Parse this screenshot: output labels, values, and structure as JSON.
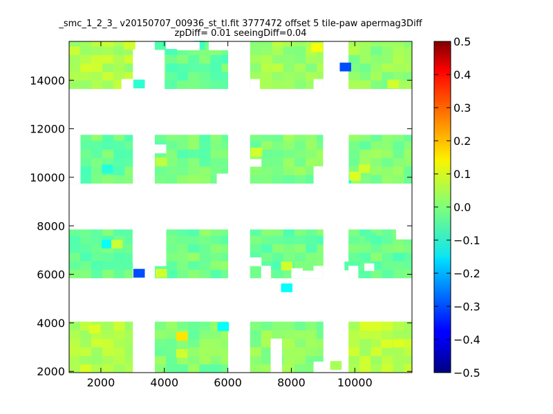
{
  "chart_data": {
    "type": "heatmap",
    "title": "_smc_1_2_3_ v20150707_00936_st_tl.fit 3777472 offset 5 tile-paw apermag3Diff",
    "subtitle": "zpDiff= 0.01 seeingDiff=0.04",
    "xlabel": "",
    "ylabel": "",
    "xlim": [
      1000,
      11800
    ],
    "ylim": [
      1950,
      15600
    ],
    "x_ticks": [
      2000,
      4000,
      6000,
      8000,
      10000
    ],
    "y_ticks": [
      2000,
      4000,
      6000,
      8000,
      10000,
      12000,
      14000
    ],
    "colorbar": {
      "colormap": "jet",
      "vmin": -0.5,
      "vmax": 0.5,
      "ticks": [
        "0.5",
        "0.4",
        "0.3",
        "0.2",
        "0.1",
        "0.0",
        "−0.1",
        "−0.2",
        "−0.3",
        "−0.4",
        "−0.5"
      ],
      "tick_values": [
        0.5,
        0.4,
        0.3,
        0.2,
        0.1,
        0.0,
        -0.1,
        -0.2,
        -0.3,
        -0.4,
        -0.5
      ]
    },
    "grid": false,
    "cell_size": [
      350,
      350
    ],
    "background_value": 0.0,
    "blocks": [
      {
        "x": [
          1000,
          3000
        ],
        "y": [
          13650,
          15600
        ],
        "value": 0.05
      },
      {
        "x": [
          3700,
          6000
        ],
        "y": [
          13650,
          15600
        ],
        "value": -0.02
      },
      {
        "x": [
          6700,
          9000
        ],
        "y": [
          13650,
          15600
        ],
        "value": 0.03
      },
      {
        "x": [
          9800,
          11800
        ],
        "y": [
          13650,
          15600
        ],
        "value": 0.02
      },
      {
        "x": [
          1000,
          3000
        ],
        "y": [
          9750,
          11750
        ],
        "value": -0.02
      },
      {
        "x": [
          3700,
          6000
        ],
        "y": [
          9750,
          11750
        ],
        "value": -0.01
      },
      {
        "x": [
          6700,
          9000
        ],
        "y": [
          9750,
          11750
        ],
        "value": 0.0
      },
      {
        "x": [
          9800,
          11800
        ],
        "y": [
          9750,
          11750
        ],
        "value": 0.0
      },
      {
        "x": [
          1000,
          3000
        ],
        "y": [
          5850,
          7850
        ],
        "value": -0.02
      },
      {
        "x": [
          3700,
          6000
        ],
        "y": [
          5850,
          7850
        ],
        "value": -0.01
      },
      {
        "x": [
          6700,
          9000
        ],
        "y": [
          5850,
          7850
        ],
        "value": -0.02
      },
      {
        "x": [
          9800,
          11800
        ],
        "y": [
          5850,
          7850
        ],
        "value": -0.02
      },
      {
        "x": [
          1000,
          3000
        ],
        "y": [
          1950,
          4050
        ],
        "value": 0.06
      },
      {
        "x": [
          3700,
          6000
        ],
        "y": [
          1950,
          4050
        ],
        "value": 0.0
      },
      {
        "x": [
          6700,
          9000
        ],
        "y": [
          1950,
          4050
        ],
        "value": 0.01
      },
      {
        "x": [
          9800,
          11800
        ],
        "y": [
          1950,
          4050
        ],
        "value": 0.06
      }
    ],
    "cells": [
      {
        "x": 9700,
        "y": 14550,
        "value": -0.3
      },
      {
        "x": 3200,
        "y": 6050,
        "value": -0.3
      },
      {
        "x": 4550,
        "y": 3450,
        "value": 0.15
      },
      {
        "x": 9700,
        "y": 9950,
        "value": -0.12
      },
      {
        "x": 7850,
        "y": 5450,
        "value": -0.12
      },
      {
        "x": 2200,
        "y": 7250,
        "value": -0.12
      },
      {
        "x": 5850,
        "y": 3850,
        "value": -0.12
      },
      {
        "x": 3200,
        "y": 13850,
        "value": -0.08
      },
      {
        "x": 8800,
        "y": 15350,
        "value": 0.12
      },
      {
        "x": 2900,
        "y": 15450,
        "value": 0.08
      },
      {
        "x": 5100,
        "y": 15450,
        "value": -0.06
      },
      {
        "x": 6900,
        "y": 11050,
        "value": 0.08
      },
      {
        "x": 3900,
        "y": 10650,
        "value": 0.06
      },
      {
        "x": 3900,
        "y": 6050,
        "value": 0.08
      },
      {
        "x": 7850,
        "y": 6350,
        "value": 0.08
      },
      {
        "x": 10000,
        "y": 10050,
        "value": 0.09
      },
      {
        "x": 10300,
        "y": 10350,
        "value": 0.08
      },
      {
        "x": 2500,
        "y": 7250,
        "value": 0.07
      },
      {
        "x": 4550,
        "y": 2750,
        "value": 0.08
      },
      {
        "x": 1800,
        "y": 3750,
        "value": 0.09
      },
      {
        "x": 10600,
        "y": 3850,
        "value": 0.09
      },
      {
        "x": 11000,
        "y": 3150,
        "value": 0.09
      },
      {
        "x": 9400,
        "y": 2250,
        "value": 0.04
      },
      {
        "x": 2200,
        "y": 10350,
        "value": -0.09
      },
      {
        "x": 9850,
        "y": 6350,
        "value": -0.04
      },
      {
        "x": 10500,
        "y": 7550,
        "value": -0.04
      },
      {
        "x": 11200,
        "y": 13850,
        "value": 0.08
      }
    ],
    "holes": [
      {
        "x": [
          1000,
          1350
        ],
        "y": [
          9750,
          11750
        ]
      },
      {
        "x": [
          2650,
          3000
        ],
        "y": [
          13650,
          14050
        ]
      },
      {
        "x": [
          3000,
          3700
        ],
        "y": [
          6500,
          7850
        ]
      },
      {
        "x": [
          3700,
          4000
        ],
        "y": [
          13650,
          15250
        ]
      },
      {
        "x": [
          3700,
          4050
        ],
        "y": [
          11000,
          11350
        ]
      },
      {
        "x": [
          4050,
          4400
        ],
        "y": [
          15300,
          15600
        ]
      },
      {
        "x": [
          4400,
          5100
        ],
        "y": [
          15250,
          15600
        ]
      },
      {
        "x": [
          5400,
          6000
        ],
        "y": [
          15250,
          15600
        ]
      },
      {
        "x": [
          3700,
          4050
        ],
        "y": [
          7850,
          6700
        ]
      },
      {
        "x": [
          3700,
          4050
        ],
        "y": [
          6350,
          6700
        ]
      },
      {
        "x": [
          5650,
          6000
        ],
        "y": [
          9750,
          10150
        ]
      },
      {
        "x": [
          6700,
          7000
        ],
        "y": [
          13650,
          14050
        ]
      },
      {
        "x": [
          6700,
          7050
        ],
        "y": [
          10450,
          10750
        ]
      },
      {
        "x": [
          6700,
          7050
        ],
        "y": [
          6350,
          6700
        ]
      },
      {
        "x": [
          7050,
          7350
        ],
        "y": [
          5850,
          6350
        ]
      },
      {
        "x": [
          8350,
          8700
        ],
        "y": [
          5850,
          6150
        ]
      },
      {
        "x": [
          8000,
          8350
        ],
        "y": [
          5850,
          6250
        ]
      },
      {
        "x": [
          8700,
          9000
        ],
        "y": [
          13650,
          14050
        ]
      },
      {
        "x": [
          8700,
          9000
        ],
        "y": [
          9750,
          10450
        ]
      },
      {
        "x": [
          8700,
          9000
        ],
        "y": [
          5850,
          6350
        ]
      },
      {
        "x": [
          9000,
          9800
        ],
        "y": [
          9750,
          11750
        ]
      },
      {
        "x": [
          9800,
          10100
        ],
        "y": [
          5850,
          6350
        ]
      },
      {
        "x": [
          10300,
          10600
        ],
        "y": [
          6150,
          6450
        ]
      },
      {
        "x": [
          11300,
          11800
        ],
        "y": [
          7450,
          7850
        ]
      },
      {
        "x": [
          7350,
          7700
        ],
        "y": [
          1950,
          3350
        ]
      },
      {
        "x": [
          8700,
          9000
        ],
        "y": [
          1950,
          2400
        ]
      },
      {
        "x": [
          9450,
          9750
        ],
        "y": [
          4050,
          3850
        ]
      }
    ]
  }
}
